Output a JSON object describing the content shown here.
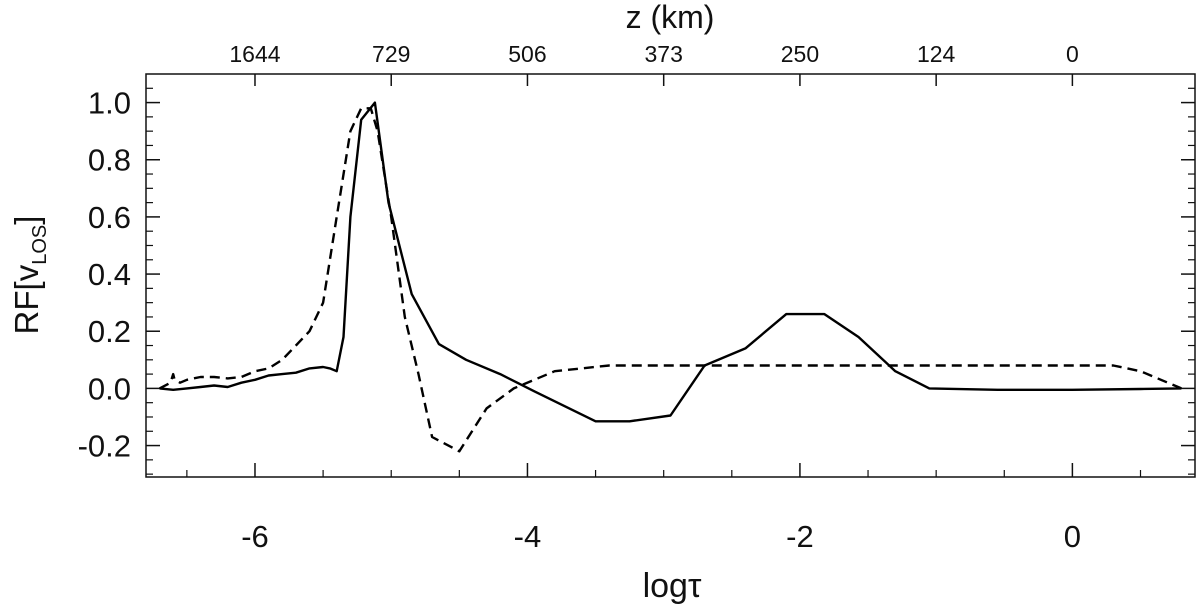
{
  "chart_data": {
    "type": "line",
    "xlabel": "logτ",
    "x2label": "z (km)",
    "ylabel_main": "RF[v",
    "ylabel_sub": "LOS",
    "ylabel_close": "]",
    "xlim": [
      -6.8,
      0.9
    ],
    "ylim": [
      -0.31,
      1.1
    ],
    "xticks": [
      -6,
      -4,
      -2,
      0
    ],
    "xtick_labels": [
      "-6",
      "-4",
      "-2",
      "0"
    ],
    "yticks": [
      -0.2,
      0.0,
      0.2,
      0.4,
      0.6,
      0.8,
      1.0
    ],
    "ytick_labels": [
      "-0.2",
      "0.0",
      "0.2",
      "0.4",
      "0.6",
      "0.8",
      "1.0"
    ],
    "x2ticks": [
      -6.0,
      -5.0,
      -4.0,
      -3.0,
      -2.0,
      -1.0,
      0.0
    ],
    "x2tick_labels": [
      "1644",
      "729",
      "506",
      "373",
      "250",
      "124",
      "0"
    ],
    "grid": false,
    "series": [
      {
        "style": "solid",
        "x": [
          -6.7,
          -6.6,
          -6.5,
          -6.4,
          -6.3,
          -6.2,
          -6.1,
          -6.0,
          -5.9,
          -5.8,
          -5.7,
          -5.6,
          -5.5,
          -5.45,
          -5.4,
          -5.35,
          -5.3,
          -5.22,
          -5.12,
          -5.02,
          -4.85,
          -4.65,
          -4.45,
          -4.2,
          -3.95,
          -3.5,
          -3.25,
          -2.95,
          -2.7,
          -2.4,
          -2.1,
          -1.82,
          -1.57,
          -1.3,
          -1.05,
          -0.55,
          0.0,
          0.5,
          0.8
        ],
        "y": [
          0.0,
          -0.005,
          0.0,
          0.005,
          0.01,
          0.005,
          0.02,
          0.03,
          0.045,
          0.05,
          0.055,
          0.07,
          0.075,
          0.07,
          0.06,
          0.18,
          0.6,
          0.94,
          1.0,
          0.65,
          0.33,
          0.155,
          0.1,
          0.05,
          -0.01,
          -0.115,
          -0.115,
          -0.095,
          0.08,
          0.14,
          0.26,
          0.26,
          0.18,
          0.06,
          0.0,
          -0.005,
          -0.005,
          -0.002,
          0.0
        ]
      },
      {
        "style": "dashed",
        "x": [
          -6.7,
          -6.62,
          -6.6,
          -6.59,
          -6.55,
          -6.5,
          -6.4,
          -6.3,
          -6.2,
          -6.1,
          -6.0,
          -5.9,
          -5.8,
          -5.7,
          -5.6,
          -5.5,
          -5.4,
          -5.3,
          -5.22,
          -5.15,
          -5.1,
          -5.0,
          -4.9,
          -4.8,
          -4.7,
          -4.5,
          -4.3,
          -4.1,
          -3.8,
          -3.4,
          0.3,
          0.5,
          0.7,
          0.8
        ],
        "y": [
          0.0,
          0.02,
          0.05,
          0.03,
          0.02,
          0.03,
          0.04,
          0.04,
          0.035,
          0.04,
          0.06,
          0.07,
          0.1,
          0.15,
          0.2,
          0.3,
          0.6,
          0.9,
          0.98,
          0.98,
          0.9,
          0.6,
          0.25,
          0.05,
          -0.17,
          -0.22,
          -0.07,
          0.0,
          0.06,
          0.08,
          0.08,
          0.06,
          0.02,
          0.0
        ]
      }
    ]
  }
}
